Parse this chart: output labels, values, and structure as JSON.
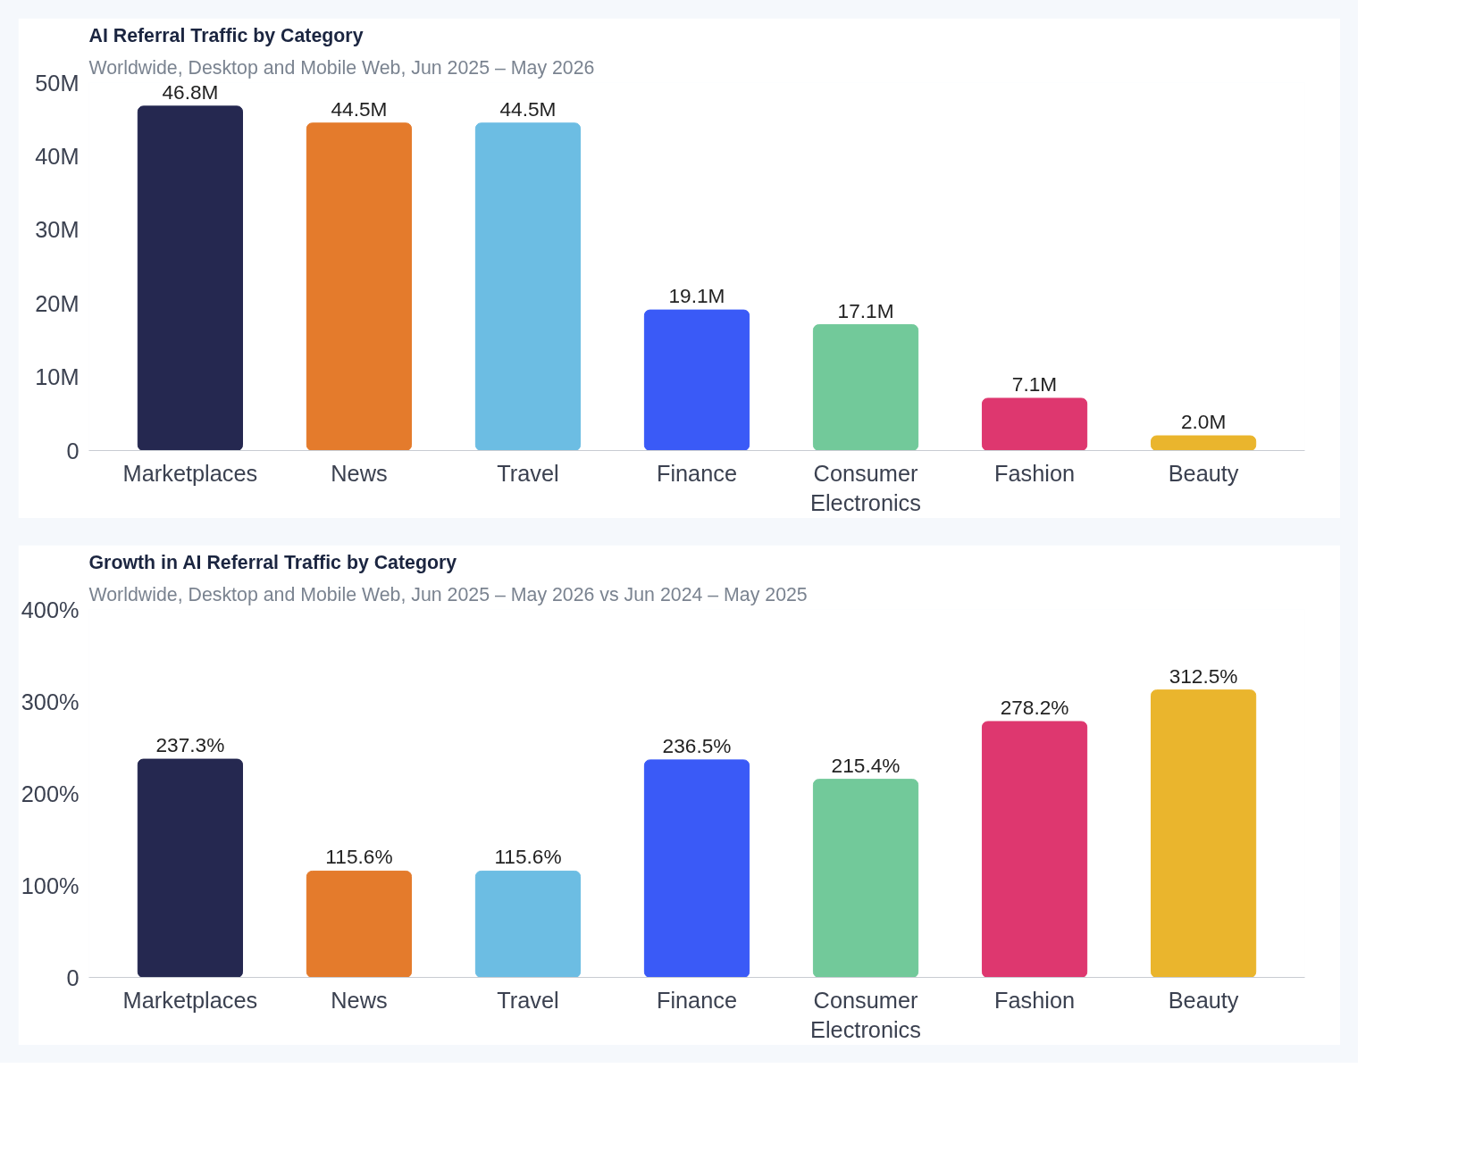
{
  "chart_data": [
    {
      "type": "bar",
      "title": "AI Referral Traffic by Category",
      "subtitle": "Worldwide, Desktop and Mobile Web, Jun 2025 – May 2026",
      "categories": [
        "Marketplaces",
        "News",
        "Travel",
        "Finance",
        "Consumer Electronics",
        "Fashion",
        "Beauty"
      ],
      "values": [
        46.8,
        44.5,
        44.5,
        19.1,
        17.1,
        7.1,
        2.0
      ],
      "value_labels": [
        "46.8M",
        "44.5M",
        "44.5M",
        "19.1M",
        "17.1M",
        "7.1M",
        "2.0M"
      ],
      "colors": [
        "#252850",
        "#e47b2c",
        "#6cbde3",
        "#3a5af7",
        "#72c99a",
        "#de376f",
        "#eab52d"
      ],
      "ylim": [
        0,
        50
      ],
      "yticks": [
        0,
        {
          "value": 10,
          "label": "10M"
        },
        {
          "value": 20,
          "label": "20M"
        },
        {
          "value": 30,
          "label": "30M"
        },
        {
          "value": 40,
          "label": "40M"
        },
        {
          "value": 50,
          "label": "50M"
        }
      ],
      "grid": false
    },
    {
      "type": "bar",
      "title": "Growth in AI Referral Traffic by Category",
      "subtitle": "Worldwide, Desktop and Mobile Web, Jun 2025 – May 2026 vs Jun 2024 – May 2025",
      "categories": [
        "Marketplaces",
        "News",
        "Travel",
        "Finance",
        "Consumer Electronics",
        "Fashion",
        "Beauty"
      ],
      "values": [
        237.3,
        115.6,
        115.6,
        236.5,
        215.4,
        278.2,
        312.5
      ],
      "value_labels": [
        "237.3%",
        "115.6%",
        "115.6%",
        "236.5%",
        "215.4%",
        "278.2%",
        "312.5%"
      ],
      "colors": [
        "#252850",
        "#e47b2c",
        "#6cbde3",
        "#3a5af7",
        "#72c99a",
        "#de376f",
        "#eab52d"
      ],
      "ylim": [
        0,
        400
      ],
      "yticks": [
        0,
        {
          "value": 100,
          "label": "100%"
        },
        {
          "value": 200,
          "label": "200%"
        },
        {
          "value": 300,
          "label": "300%"
        },
        {
          "value": 400,
          "label": "400%"
        }
      ],
      "grid": false
    }
  ]
}
